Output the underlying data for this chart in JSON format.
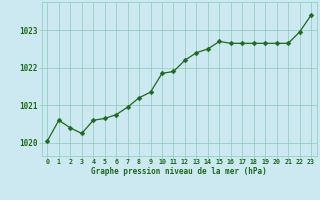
{
  "x": [
    0,
    1,
    2,
    3,
    4,
    5,
    6,
    7,
    8,
    9,
    10,
    11,
    12,
    13,
    14,
    15,
    16,
    17,
    18,
    19,
    20,
    21,
    22,
    23
  ],
  "y": [
    1020.05,
    1020.6,
    1020.4,
    1020.25,
    1020.6,
    1020.65,
    1020.75,
    1020.95,
    1021.2,
    1021.35,
    1021.85,
    1021.9,
    1022.2,
    1022.4,
    1022.5,
    1022.7,
    1022.65,
    1022.65,
    1022.65,
    1022.65,
    1022.65,
    1022.65,
    1022.95,
    1023.4
  ],
  "line_color": "#1a6b1a",
  "marker_color": "#1a6b1a",
  "bg_color": "#cce8f0",
  "grid_color": "#88ccbb",
  "title_color": "#1a6b1a",
  "xlabel_ticks": [
    "0",
    "1",
    "2",
    "3",
    "4",
    "5",
    "6",
    "7",
    "8",
    "9",
    "10",
    "11",
    "12",
    "13",
    "14",
    "15",
    "16",
    "17",
    "18",
    "19",
    "20",
    "21",
    "22",
    "23"
  ],
  "xlabel_title": "Graphe pression niveau de la mer (hPa)",
  "yticks": [
    1020,
    1021,
    1022,
    1023
  ],
  "ylim": [
    1019.65,
    1023.75
  ],
  "xlim": [
    -0.5,
    23.5
  ],
  "figwidth": 3.2,
  "figheight": 2.0,
  "dpi": 100
}
